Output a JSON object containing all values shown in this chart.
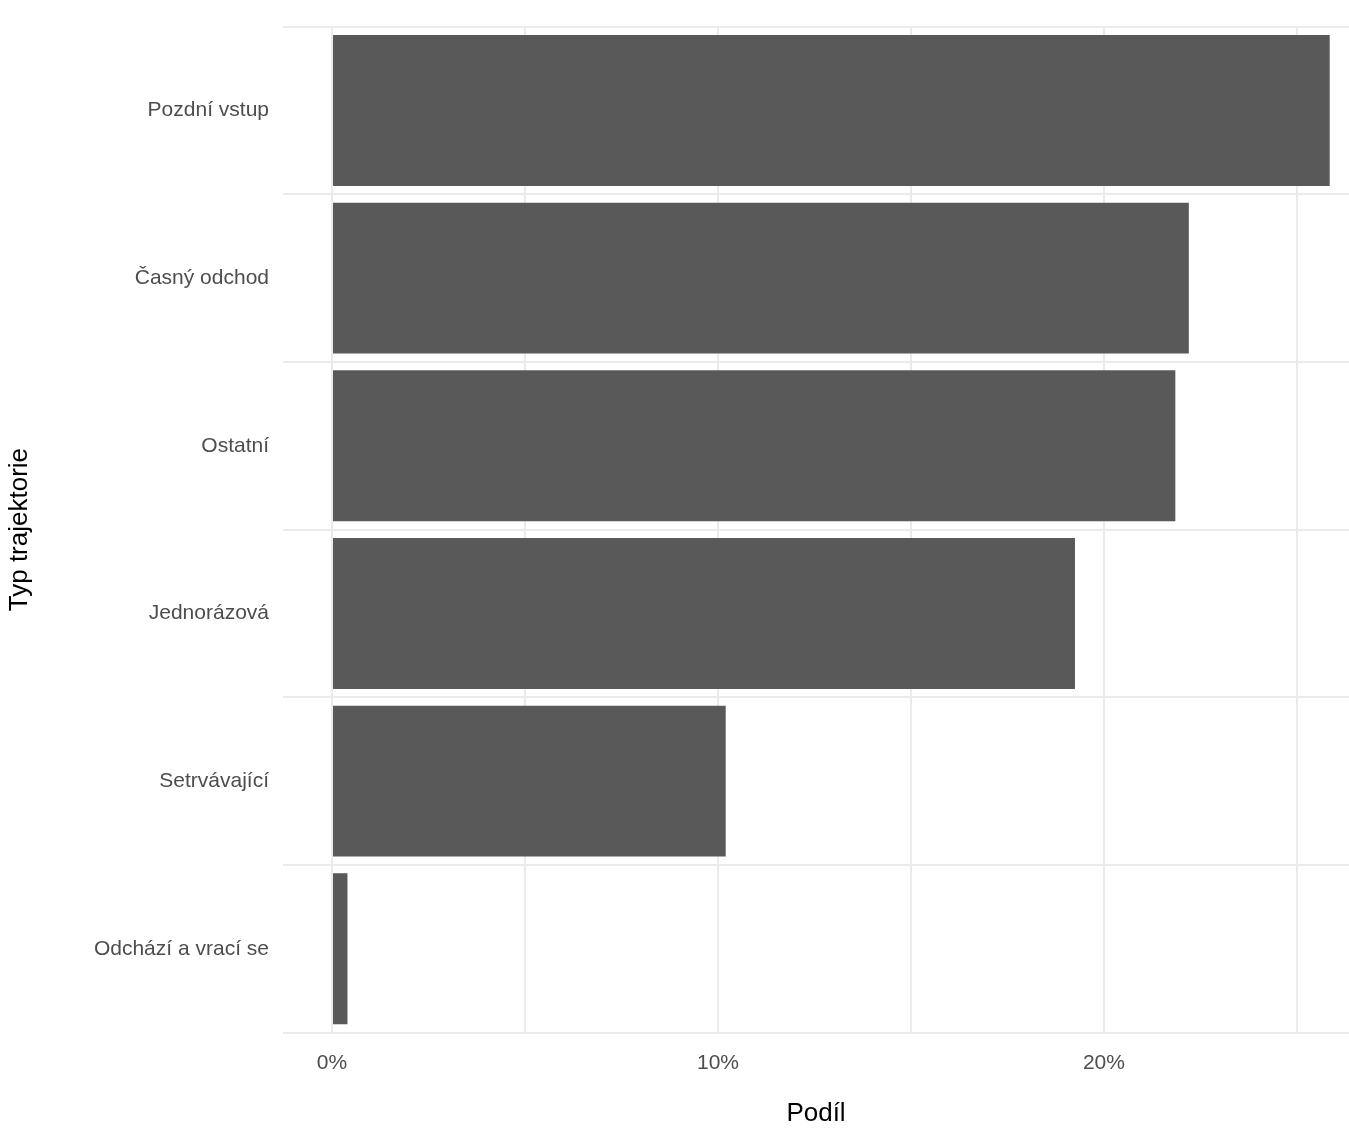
{
  "chart_data": {
    "type": "bar",
    "orientation": "horizontal",
    "xlabel": "Podíl",
    "ylabel": "Typ trajektorie",
    "categories": [
      "Pozdní vstup",
      "Časný odchod",
      "Ostatní",
      "Jednorázová",
      "Setrvávající",
      "Odchází a vrací se"
    ],
    "values": [
      25.85,
      22.2,
      21.85,
      19.25,
      10.2,
      0.4
    ],
    "color": "#595959",
    "xlim": [
      -1.27,
      26.35
    ],
    "xticks": [
      {
        "value": 0,
        "label": "0%"
      },
      {
        "value": 5,
        "label": null
      },
      {
        "value": 10,
        "label": "10%"
      },
      {
        "value": 15,
        "label": null
      },
      {
        "value": 20,
        "label": "20%"
      },
      {
        "value": 25,
        "label": null
      }
    ],
    "grid": true,
    "legend": false
  }
}
